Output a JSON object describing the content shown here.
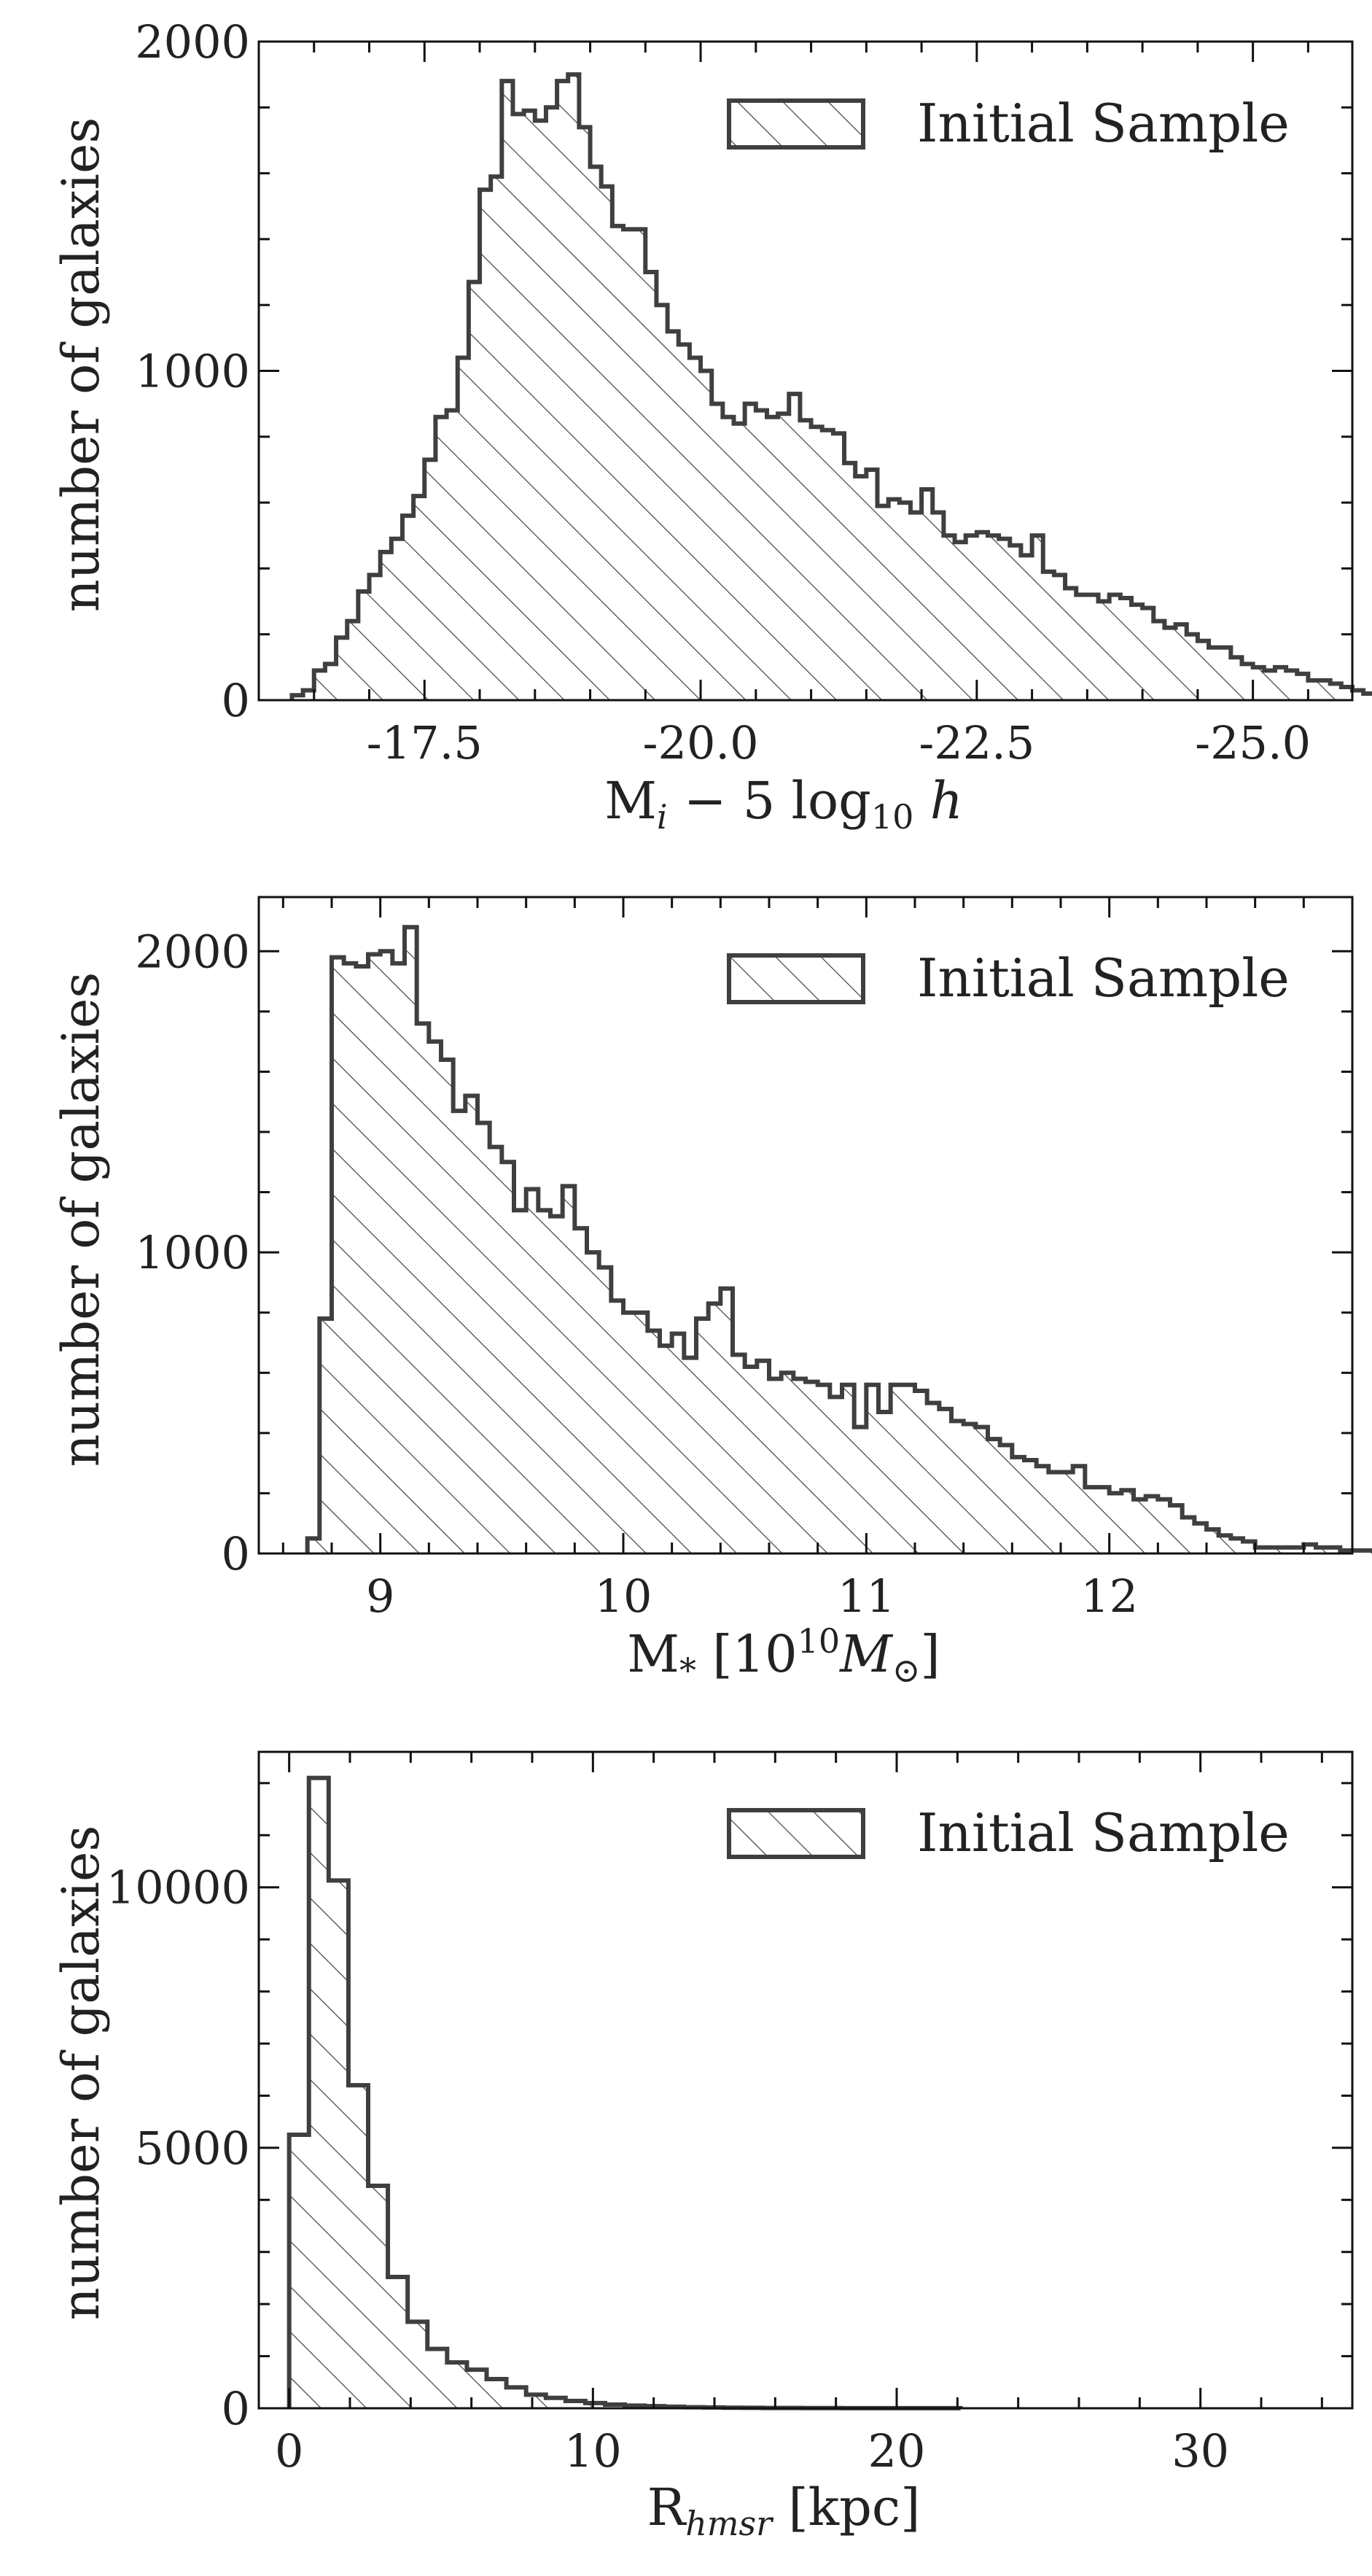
{
  "figure": {
    "background": "#ffffff",
    "ink": "#111111",
    "hist_color": "#3f3f3f"
  },
  "chart_data": [
    {
      "type": "histogram",
      "xlabel": "M_i − 5 log10 h",
      "ylabel": "number of galaxies",
      "legend": {
        "label": "Initial Sample",
        "placement": "top-right",
        "hatch": "diagonal"
      },
      "x_reversed": true,
      "xlim": [
        -16.0,
        -25.9
      ],
      "ylim": [
        0,
        2000
      ],
      "x_ticks": [
        -17.5,
        -20.0,
        -22.5,
        -25.0
      ],
      "x_tick_labels": [
        "-17.5",
        "-20.0",
        "-22.5",
        "-25.0"
      ],
      "y_ticks": [
        0,
        1000,
        2000
      ],
      "y_tick_labels": [
        "0",
        "1000",
        "2000"
      ],
      "bin_start": -16.3,
      "bin_width": -0.1,
      "counts": [
        15,
        30,
        90,
        110,
        190,
        240,
        330,
        380,
        450,
        490,
        560,
        620,
        730,
        860,
        880,
        1040,
        1270,
        1550,
        1590,
        1880,
        1780,
        1790,
        1760,
        1800,
        1880,
        1900,
        1740,
        1620,
        1560,
        1440,
        1430,
        1430,
        1300,
        1200,
        1120,
        1080,
        1040,
        1000,
        900,
        860,
        840,
        900,
        880,
        860,
        870,
        930,
        850,
        830,
        820,
        810,
        720,
        680,
        700,
        590,
        610,
        600,
        570,
        640,
        570,
        500,
        480,
        500,
        510,
        500,
        490,
        470,
        440,
        500,
        390,
        380,
        340,
        320,
        320,
        300,
        320,
        310,
        290,
        280,
        240,
        220,
        230,
        200,
        180,
        160,
        160,
        130,
        110,
        100,
        90,
        100,
        90,
        80,
        60,
        60,
        50,
        40,
        30,
        20,
        15,
        10,
        25,
        20,
        20,
        30,
        20,
        15,
        20,
        20,
        25,
        25,
        15,
        10,
        10,
        5,
        5,
        5
      ]
    },
    {
      "type": "histogram",
      "xlabel": "M_* [10^10 M_⊙]",
      "ylabel": "number of galaxies",
      "legend": {
        "label": "Initial Sample",
        "placement": "top-right",
        "hatch": "diagonal"
      },
      "xlim": [
        8.5,
        13.0
      ],
      "ylim": [
        0,
        2180
      ],
      "x_ticks": [
        9,
        10,
        11,
        12
      ],
      "x_tick_labels": [
        "9",
        "10",
        "11",
        "12"
      ],
      "y_ticks": [
        0,
        1000,
        2000
      ],
      "y_tick_labels": [
        "0",
        "1000",
        "2000"
      ],
      "bin_start": 8.7,
      "bin_width": 0.05,
      "counts": [
        50,
        780,
        1980,
        1960,
        1950,
        1990,
        2000,
        1960,
        2080,
        1760,
        1700,
        1640,
        1470,
        1520,
        1430,
        1350,
        1300,
        1140,
        1210,
        1140,
        1120,
        1220,
        1080,
        1000,
        950,
        840,
        800,
        800,
        740,
        690,
        730,
        650,
        780,
        830,
        880,
        660,
        620,
        640,
        580,
        600,
        580,
        570,
        560,
        520,
        560,
        420,
        560,
        470,
        560,
        560,
        540,
        500,
        480,
        440,
        430,
        420,
        380,
        360,
        320,
        310,
        290,
        270,
        270,
        290,
        220,
        220,
        200,
        210,
        180,
        190,
        180,
        160,
        120,
        100,
        80,
        60,
        50,
        40,
        20,
        20,
        20,
        20,
        30,
        20,
        20,
        10,
        10,
        10,
        10,
        10,
        10,
        10,
        10,
        10,
        10
      ]
    },
    {
      "type": "histogram",
      "xlabel": "R_hmsr [kpc]",
      "ylabel": "number of galaxies",
      "legend": {
        "label": "Initial Sample",
        "placement": "top-right",
        "hatch": "diagonal"
      },
      "xlim": [
        -1,
        35
      ],
      "ylim": [
        0,
        12600
      ],
      "x_ticks": [
        0,
        10,
        20,
        30
      ],
      "x_tick_labels": [
        "0",
        "10",
        "20",
        "30"
      ],
      "y_ticks": [
        0,
        5000,
        10000
      ],
      "y_tick_labels": [
        "0",
        "5000",
        "10000"
      ],
      "bin_start": 0.0,
      "bin_width": 0.65,
      "counts": [
        5250,
        12100,
        10130,
        6200,
        4270,
        2520,
        1660,
        1140,
        880,
        740,
        560,
        400,
        260,
        200,
        140,
        100,
        70,
        50,
        40,
        30,
        20,
        15,
        10,
        8,
        6,
        5,
        4,
        3,
        2,
        2,
        1,
        1,
        1,
        1
      ]
    }
  ]
}
